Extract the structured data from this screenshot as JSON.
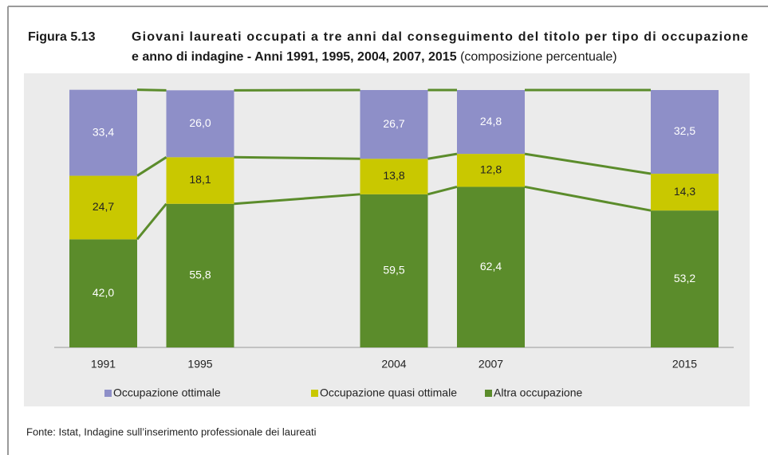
{
  "chart_data": {
    "type": "stacked_bar",
    "figure_label": "Figura 5.13",
    "title": [
      "Giovani laureati occupati a tre anni dal conseguimento del titolo per tipo di occupazione",
      "e anno di indagine - Anni 1991, 1995, 2004, 2007, 2015"
    ],
    "subtitle": "(composizione percentuale)",
    "source": "Fonte: Istat, Indagine sull’inserimento professionale dei laureati",
    "categories": [
      "1991",
      "1995",
      null,
      "2004",
      "2007",
      null,
      "2015"
    ],
    "ylim": [
      0,
      100
    ],
    "series": [
      {
        "name": "Occupazione ottimale",
        "color": "#8e8fc8",
        "label_color": "#ffffff",
        "values": [
          33.4,
          26.0,
          null,
          26.7,
          24.8,
          null,
          32.5
        ],
        "value_labels": [
          "33,4",
          "26,0",
          null,
          "26,7",
          "24,8",
          null,
          "32,5"
        ]
      },
      {
        "name": "Occupazione quasi ottimale",
        "color": "#c9c800",
        "label_color": "#222222",
        "values": [
          24.7,
          18.1,
          null,
          13.8,
          12.8,
          null,
          14.3
        ],
        "value_labels": [
          "24,7",
          "18,1",
          null,
          "13,8",
          "12,8",
          null,
          "14,3"
        ]
      },
      {
        "name": "Altra occupazione",
        "color": "#5b8c2b",
        "label_color": "#ffffff",
        "values": [
          42.0,
          55.8,
          null,
          59.5,
          62.4,
          null,
          53.2
        ],
        "value_labels": [
          "42,0",
          "55,8",
          null,
          "59,5",
          "62,4",
          null,
          "53,2"
        ]
      }
    ],
    "connector_lines": true
  }
}
